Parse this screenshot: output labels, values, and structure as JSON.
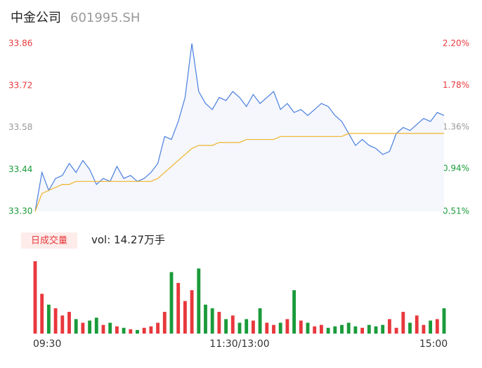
{
  "header": {
    "title": "中金公司",
    "code": "601995.SH"
  },
  "chart_data": {
    "type": "line",
    "categories": [
      "09:30",
      null,
      null,
      null,
      null,
      null,
      null,
      null,
      null,
      null,
      null,
      null,
      null,
      null,
      null,
      null,
      null,
      null,
      null,
      null,
      null,
      null,
      null,
      null,
      null,
      null,
      null,
      null,
      null,
      null,
      "11:30/13:00",
      null,
      null,
      null,
      null,
      null,
      null,
      null,
      null,
      null,
      null,
      null,
      null,
      null,
      null,
      null,
      null,
      null,
      null,
      null,
      null,
      null,
      null,
      null,
      null,
      null,
      null,
      null,
      null,
      null,
      "15:00"
    ],
    "series": [
      {
        "color": "#4a7fe0",
        "values": [
          33.3,
          33.43,
          33.37,
          33.41,
          33.42,
          33.46,
          33.43,
          33.47,
          33.44,
          33.39,
          33.41,
          33.4,
          33.45,
          33.41,
          33.42,
          33.4,
          33.41,
          33.43,
          33.46,
          33.55,
          33.54,
          33.6,
          33.68,
          33.86,
          33.7,
          33.66,
          33.64,
          33.68,
          33.67,
          33.7,
          33.68,
          33.65,
          33.69,
          33.66,
          33.68,
          33.7,
          33.64,
          33.66,
          33.63,
          33.64,
          33.62,
          33.64,
          33.66,
          33.65,
          33.62,
          33.6,
          33.56,
          33.52,
          33.54,
          33.52,
          33.51,
          33.49,
          33.5,
          33.56,
          33.58,
          33.57,
          33.59,
          33.61,
          33.6,
          33.63,
          33.62
        ]
      },
      {
        "color": "#f0b429",
        "values": [
          33.3,
          33.36,
          33.37,
          33.38,
          33.39,
          33.39,
          33.4,
          33.4,
          33.4,
          33.4,
          33.4,
          33.4,
          33.4,
          33.4,
          33.4,
          33.4,
          33.4,
          33.4,
          33.41,
          33.43,
          33.45,
          33.47,
          33.49,
          33.51,
          33.52,
          33.52,
          33.52,
          33.53,
          33.53,
          33.53,
          33.53,
          33.54,
          33.54,
          33.54,
          33.54,
          33.54,
          33.55,
          33.55,
          33.55,
          33.55,
          33.55,
          33.55,
          33.55,
          33.55,
          33.55,
          33.55,
          33.56,
          33.56,
          33.56,
          33.56,
          33.56,
          33.56,
          33.56,
          33.56,
          33.56,
          33.56,
          33.56,
          33.56,
          33.56,
          33.56,
          33.56
        ]
      }
    ],
    "ylim": [
      33.3,
      33.86
    ],
    "yticks": [
      {
        "value": 33.3,
        "label": "33.30"
      },
      {
        "value": 33.44,
        "label": "33.44"
      },
      {
        "value": 33.58,
        "label": "33.58"
      },
      {
        "value": 33.72,
        "label": "33.72"
      },
      {
        "value": 33.86,
        "label": "33.86"
      }
    ],
    "y2lim": [
      0.51,
      2.2
    ],
    "y2ticks": [
      {
        "value": 0.51,
        "label": "0.51%"
      },
      {
        "value": 0.94,
        "label": "0.94%"
      },
      {
        "value": 1.36,
        "label": "1.36%"
      },
      {
        "value": 1.78,
        "label": "1.78%"
      },
      {
        "value": 2.2,
        "label": "2.20%"
      }
    ],
    "up_color": "#e8383d",
    "down_color": "#1a9b3a",
    "flat_color": "#999999",
    "volume": {
      "tab": "日成交量",
      "label": "vol: 14.27万手",
      "values": [
        100,
        55,
        40,
        35,
        25,
        30,
        20,
        15,
        18,
        22,
        12,
        15,
        10,
        8,
        6,
        5,
        8,
        10,
        15,
        30,
        85,
        70,
        45,
        60,
        90,
        40,
        35,
        30,
        20,
        25,
        15,
        20,
        18,
        35,
        15,
        12,
        15,
        20,
        60,
        18,
        15,
        10,
        12,
        8,
        10,
        12,
        15,
        10,
        8,
        12,
        10,
        12,
        20,
        8,
        30,
        15,
        25,
        12,
        18,
        20,
        35
      ]
    }
  }
}
